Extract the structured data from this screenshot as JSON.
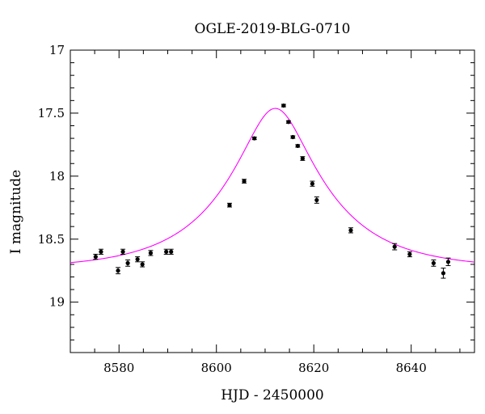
{
  "chart_data": {
    "type": "scatter",
    "title": "OGLE-2019-BLG-0710",
    "xlabel": "HJD - 2450000",
    "ylabel": "I magnitude",
    "xlim": [
      8570,
      8653
    ],
    "ylim": [
      19.4,
      17.0
    ],
    "y_inverted": true,
    "xticks": [
      8580,
      8600,
      8620,
      8640
    ],
    "xtick_labels": [
      "8580",
      "8600",
      "8620",
      "8640"
    ],
    "yticks": [
      17,
      17.5,
      18,
      18.5,
      19
    ],
    "ytick_labels": [
      "17",
      "17.5",
      "18",
      "18.5",
      "19"
    ],
    "grid": false,
    "series": [
      {
        "type": "scatter_errorbar",
        "color": "#000000",
        "points": [
          {
            "x": 8575.2,
            "y": 18.64,
            "err": 0.02
          },
          {
            "x": 8576.3,
            "y": 18.6,
            "err": 0.02
          },
          {
            "x": 8579.8,
            "y": 18.75,
            "err": 0.025
          },
          {
            "x": 8580.8,
            "y": 18.6,
            "err": 0.02
          },
          {
            "x": 8581.8,
            "y": 18.69,
            "err": 0.025
          },
          {
            "x": 8583.8,
            "y": 18.66,
            "err": 0.02
          },
          {
            "x": 8584.8,
            "y": 18.7,
            "err": 0.02
          },
          {
            "x": 8586.5,
            "y": 18.61,
            "err": 0.02
          },
          {
            "x": 8589.7,
            "y": 18.6,
            "err": 0.02
          },
          {
            "x": 8590.7,
            "y": 18.6,
            "err": 0.02
          },
          {
            "x": 8602.7,
            "y": 18.23,
            "err": 0.015
          },
          {
            "x": 8605.7,
            "y": 18.04,
            "err": 0.015
          },
          {
            "x": 8607.8,
            "y": 17.7,
            "err": 0.01
          },
          {
            "x": 8613.8,
            "y": 17.44,
            "err": 0.01
          },
          {
            "x": 8614.8,
            "y": 17.57,
            "err": 0.01
          },
          {
            "x": 8615.7,
            "y": 17.69,
            "err": 0.01
          },
          {
            "x": 8616.7,
            "y": 17.76,
            "err": 0.01
          },
          {
            "x": 8617.7,
            "y": 17.86,
            "err": 0.015
          },
          {
            "x": 8619.7,
            "y": 18.06,
            "err": 0.02
          },
          {
            "x": 8620.6,
            "y": 18.19,
            "err": 0.025
          },
          {
            "x": 8627.6,
            "y": 18.43,
            "err": 0.02
          },
          {
            "x": 8636.6,
            "y": 18.56,
            "err": 0.025
          },
          {
            "x": 8639.7,
            "y": 18.62,
            "err": 0.02
          },
          {
            "x": 8644.6,
            "y": 18.69,
            "err": 0.025
          },
          {
            "x": 8646.6,
            "y": 18.77,
            "err": 0.04
          },
          {
            "x": 8647.6,
            "y": 18.68,
            "err": 0.03
          }
        ]
      },
      {
        "type": "model_curve",
        "color": "#ff00ff",
        "model": {
          "t0": 8612.1,
          "u0": 0.32,
          "tE": 20.0,
          "baseline_mag": 18.74,
          "x_from": 8570,
          "x_to": 8653
        }
      }
    ]
  }
}
